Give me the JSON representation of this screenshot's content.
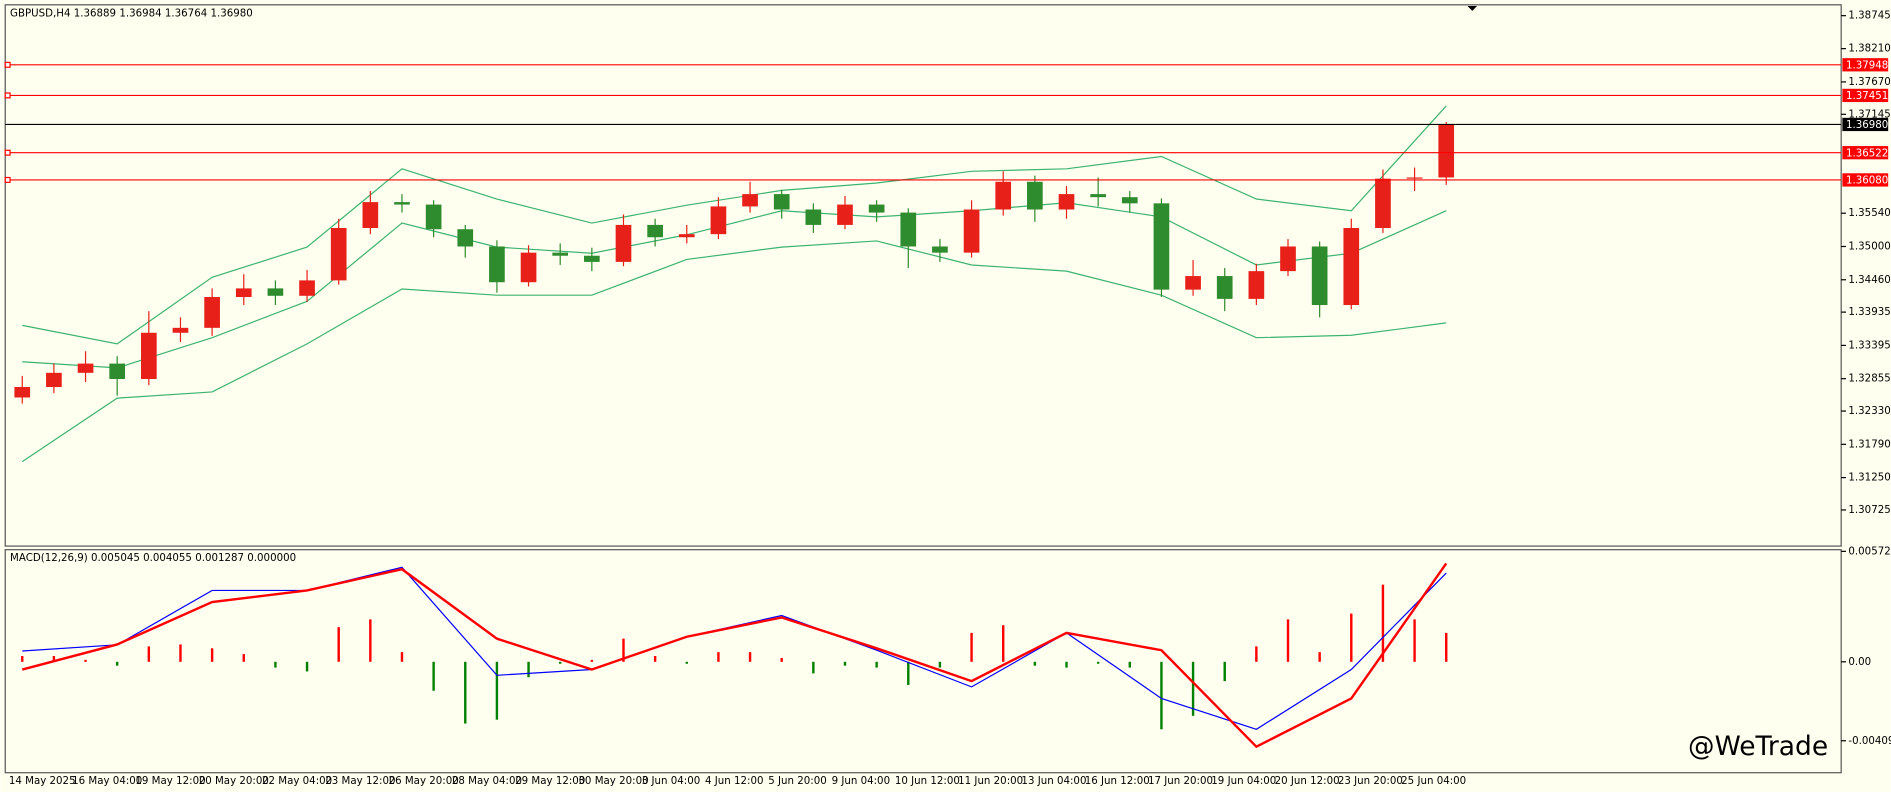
{
  "chart_data": [
    {
      "type": "candlestick",
      "title": "GBPUSD,H4  1.36889 1.36984 1.36764 1.36980",
      "categories": [
        "14 May 2025",
        null,
        "16 May 04:00",
        null,
        "19 May 12:00",
        null,
        "20 May 20:00",
        null,
        "22 May 04:00",
        null,
        "23 May 12:00",
        null,
        "26 May 20:00",
        null,
        "28 May 04:00",
        null,
        "29 May 12:00",
        null,
        "30 May 20:00",
        null,
        "3 Jun 04:00",
        null,
        "4 Jun 12:00",
        null,
        "5 Jun 20:00",
        null,
        "9 Jun 04:00",
        null,
        "10 Jun 12:00",
        null,
        "11 Jun 20:00",
        null,
        "13 Jun 04:00",
        null,
        "16 Jun 12:00",
        null,
        "17 Jun 20:00",
        null,
        "19 Jun 04:00",
        null,
        "20 Jun 12:00",
        null,
        "23 Jun 20:00",
        null,
        "25 Jun 04:00",
        null
      ],
      "open": [
        1.3255,
        1.3272,
        1.3295,
        1.331,
        1.3285,
        1.336,
        1.3368,
        1.3418,
        1.3432,
        1.342,
        1.3445,
        1.353,
        1.3572,
        1.3568,
        1.3528,
        1.35,
        1.3442,
        1.349,
        1.3485,
        1.3475,
        1.3535,
        1.3515,
        1.352,
        1.3565,
        1.3585,
        1.356,
        1.3535,
        1.3568,
        1.3555,
        1.35,
        1.349,
        1.356,
        1.3605,
        1.356,
        1.3585,
        1.358,
        1.357,
        1.343,
        1.3452,
        1.3415,
        1.346,
        1.35,
        1.3405,
        1.353,
        1.361,
        1.3612
      ],
      "high": [
        1.329,
        1.331,
        1.333,
        1.3322,
        1.3395,
        1.3385,
        1.3432,
        1.3455,
        1.3445,
        1.3462,
        1.3545,
        1.359,
        1.3585,
        1.3575,
        1.3535,
        1.351,
        1.3502,
        1.3505,
        1.3498,
        1.3552,
        1.3545,
        1.3535,
        1.358,
        1.3605,
        1.3592,
        1.357,
        1.3582,
        1.3575,
        1.3562,
        1.3512,
        1.3575,
        1.3622,
        1.3615,
        1.3598,
        1.3612,
        1.359,
        1.3578,
        1.3478,
        1.3465,
        1.3472,
        1.3512,
        1.3508,
        1.3545,
        1.3625,
        1.3628,
        1.3702
      ],
      "low": [
        1.3245,
        1.3262,
        1.328,
        1.3258,
        1.3275,
        1.3345,
        1.3355,
        1.3405,
        1.3405,
        1.341,
        1.3438,
        1.352,
        1.3555,
        1.3515,
        1.3482,
        1.3425,
        1.3435,
        1.347,
        1.346,
        1.3468,
        1.35,
        1.3505,
        1.3512,
        1.3555,
        1.3545,
        1.3522,
        1.3528,
        1.354,
        1.3465,
        1.3475,
        1.3482,
        1.355,
        1.354,
        1.3545,
        1.3565,
        1.3555,
        1.3418,
        1.342,
        1.3395,
        1.3405,
        1.3452,
        1.3385,
        1.3398,
        1.3522,
        1.359,
        1.36
      ],
      "close": [
        1.3272,
        1.3295,
        1.331,
        1.3285,
        1.336,
        1.3368,
        1.3418,
        1.3432,
        1.342,
        1.3445,
        1.353,
        1.3572,
        1.3568,
        1.3528,
        1.35,
        1.3442,
        1.349,
        1.3485,
        1.3475,
        1.3535,
        1.3515,
        1.352,
        1.3565,
        1.3585,
        1.356,
        1.3535,
        1.3568,
        1.3555,
        1.35,
        1.349,
        1.356,
        1.3605,
        1.356,
        1.3585,
        1.358,
        1.357,
        1.343,
        1.3452,
        1.3415,
        1.346,
        1.35,
        1.3405,
        1.353,
        1.361,
        1.3612,
        1.3698
      ],
      "up_color": "#e8201a",
      "down_color": "#2e8b2e",
      "ylim": [
        1.30139,
        1.38921
      ],
      "yticks": [
        1.38745,
        {
          "value": 1.3821,
          "label": "1.38210"
        },
        {
          "value": 1.3767,
          "label": "1.37670"
        },
        1.37145,
        {
          "value": 1.3554,
          "label": "1.35540"
        },
        {
          "value": 1.35,
          "label": "1.35000"
        },
        {
          "value": 1.3446,
          "label": "1.34460"
        },
        1.33935,
        1.33395,
        1.32855,
        {
          "value": 1.3233,
          "label": "1.32330"
        },
        {
          "value": 1.3179,
          "label": "1.31790"
        },
        {
          "value": 1.3125,
          "label": "1.31250"
        },
        1.30725
      ],
      "levels": [
        {
          "value": 1.37948,
          "color": "#ff0000"
        },
        {
          "value": 1.37451,
          "color": "#ff0000"
        },
        {
          "value": 1.36522,
          "color": "#ff0000"
        },
        {
          "value": 1.3608,
          "label": "1.36080",
          "color": "#ff0000"
        }
      ],
      "last": {
        "value": 1.3698,
        "label": "1.36980",
        "color": "#000000"
      },
      "line_x": [
        0,
        3,
        6,
        9,
        12,
        15,
        18,
        21,
        24,
        27,
        30,
        33,
        36,
        39,
        42,
        45
      ],
      "bands": [
        {
          "color": "#3cb371",
          "values": [
            1.3372,
            1.3342,
            1.345,
            1.3499,
            1.3626,
            1.3577,
            1.3538,
            1.3567,
            1.3591,
            1.3603,
            1.3622,
            1.3626,
            1.3646,
            1.3577,
            1.3558,
            1.3728
          ]
        },
        {
          "color": "#3cb371",
          "values": [
            1.3313,
            1.3303,
            1.3352,
            1.3411,
            1.3538,
            1.3499,
            1.3489,
            1.3519,
            1.3558,
            1.3548,
            1.3558,
            1.3571,
            1.3548,
            1.347,
            1.3489,
            1.3558
          ]
        },
        {
          "color": "#3cb371",
          "values": [
            1.3151,
            1.3254,
            1.3264,
            1.3342,
            1.3431,
            1.3421,
            1.3421,
            1.3479,
            1.3499,
            1.3509,
            1.347,
            1.346,
            1.3421,
            1.3352,
            1.3356,
            1.3376
          ]
        }
      ]
    },
    {
      "type": "macd",
      "title": "MACD(12,26,9) 0.005045 0.004055 0.001287 0.000000",
      "ylim": [
        -0.00575,
        0.00575
      ],
      "yticks": [
        0.005727,
        {
          "value": 0,
          "label": "0.00"
        },
        -0.004094
      ],
      "histogram": [
        0.0003,
        0.0003,
        0.0001,
        -0.0002,
        0.0008,
        0.0009,
        0.0007,
        0.0004,
        -0.0003,
        -0.0005,
        0.0018,
        0.0022,
        0.0005,
        -0.0015,
        -0.0032,
        -0.003,
        -0.0008,
        -0.0001,
        0.0001,
        0.0012,
        0.0003,
        -0.0001,
        0.0005,
        0.0005,
        0.0002,
        -0.0006,
        -0.0002,
        -0.0003,
        -0.0012,
        -0.0003,
        0.0015,
        0.0019,
        -0.0002,
        -0.0003,
        -0.0001,
        -0.0003,
        -0.0035,
        -0.0028,
        -0.001,
        0.0008,
        0.0022,
        0.0005,
        0.0025,
        0.004,
        0.0022,
        0.0015
      ],
      "positive_color": "#ff0000",
      "negative_color": "#008000",
      "line_x": [
        0,
        3,
        6,
        9,
        12,
        15,
        18,
        21,
        24,
        27,
        30,
        33,
        36,
        39,
        42,
        45
      ],
      "series": [
        {
          "color": "#0000ff",
          "values": [
            0.00056,
            0.00088,
            0.0037,
            0.0037,
            0.0049,
            -0.0007,
            -0.0004,
            0.0013,
            0.0024,
            0.0006,
            -0.0013,
            0.0015,
            -0.0019,
            -0.0035,
            -0.0004,
            0.0046
          ]
        },
        {
          "color": "#ff0000",
          "values": [
            -0.0004,
            0.0009,
            0.0031,
            0.0037,
            0.0048,
            0.0012,
            -0.0004,
            0.0013,
            0.0023,
            0.0007,
            -0.001,
            0.0015,
            0.0006,
            -0.0044,
            -0.0019,
            0.0051
          ]
        }
      ]
    }
  ],
  "watermark": "@WeTrade"
}
